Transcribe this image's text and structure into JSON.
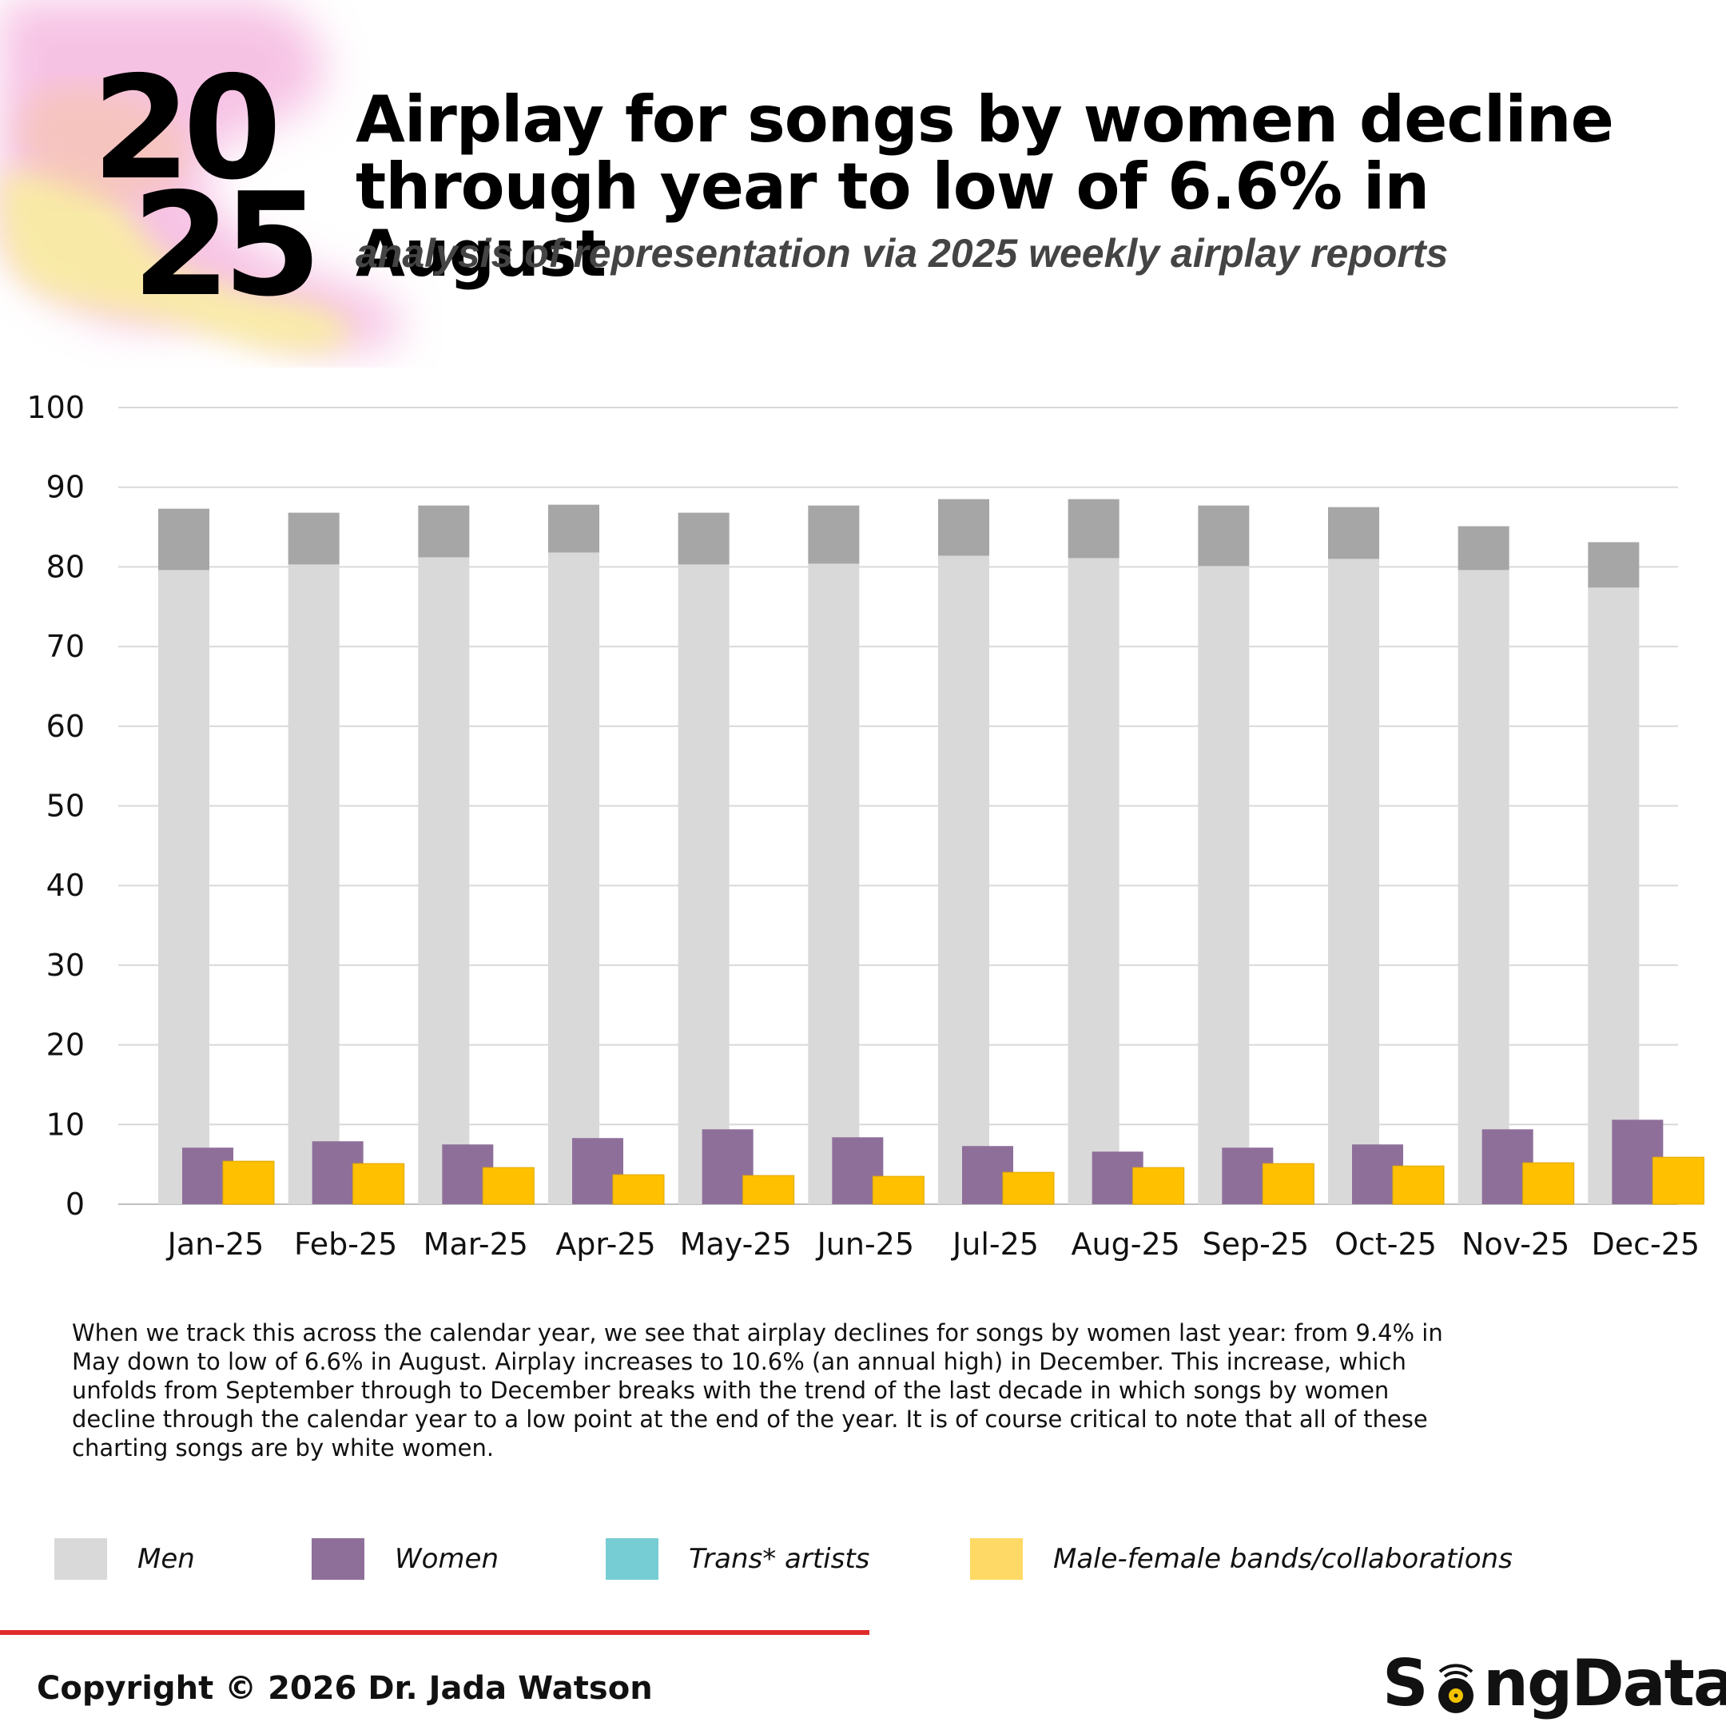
{
  "header": {
    "year_top": "20",
    "year_bottom": "25",
    "title_line1": "Airplay for songs by women decline",
    "title_line2": "through year to low of 6.6% in August",
    "subtitle": "analysis of representation via 2025 weekly airplay reports"
  },
  "chart_data": {
    "type": "bar",
    "categories": [
      "Jan-25",
      "Feb-25",
      "Mar-25",
      "Apr-25",
      "May-25",
      "Jun-25",
      "Jul-25",
      "Aug-25",
      "Sep-25",
      "Oct-25",
      "Nov-25",
      "Dec-25"
    ],
    "series": [
      {
        "name": "Men",
        "color": "#d9d9d9",
        "values": [
          79.6,
          80.3,
          81.2,
          81.8,
          80.3,
          80.4,
          81.4,
          81.1,
          80.1,
          81.0,
          79.6,
          77.4
        ],
        "upper_band": {
          "color": "#a6a6a6",
          "values": [
            87.3,
            86.8,
            87.7,
            87.8,
            86.8,
            87.7,
            88.5,
            88.5,
            87.7,
            87.5,
            85.1,
            83.1
          ]
        }
      },
      {
        "name": "Women",
        "color": "#8e6f9a",
        "values": [
          7.1,
          7.9,
          7.5,
          8.3,
          9.4,
          8.4,
          7.3,
          6.6,
          7.1,
          7.5,
          9.4,
          10.6
        ]
      },
      {
        "name": "Trans* artists",
        "color": "#76cdd3",
        "values": [
          0,
          0,
          0,
          0,
          0,
          0,
          0,
          0,
          0,
          0,
          0,
          0
        ]
      },
      {
        "name": "Male-female bands/collaborations",
        "color": "#ffc000",
        "values": [
          5.4,
          5.1,
          4.6,
          3.7,
          3.6,
          3.5,
          4.0,
          4.6,
          5.1,
          4.8,
          5.2,
          5.9
        ]
      }
    ],
    "y_ticks": [
      "0",
      "10",
      "20",
      "30",
      "40",
      "50",
      "60",
      "70",
      "80",
      "90",
      "100"
    ],
    "ylim": [
      0,
      100
    ],
    "grid": true,
    "legend_placement": "bottom"
  },
  "caption": "When we track this across the calendar year, we see that airplay declines for songs by women last year: from 9.4% in May down to low of 6.6% in August. Airplay increases to 10.6% (an annual high) in December. This increase, which unfolds from September through to December breaks with the trend of the last decade in which songs by women decline through the calendar year to a low point at the end of the year. It is of course critical to note that all of these charting songs are by white women.",
  "legend": {
    "men": "Men",
    "women": "Women",
    "trans": "Trans* artists",
    "collab": "Male-female bands/collaborations",
    "men_color": "#d9d9d9",
    "women_color": "#8e6f9a",
    "trans_color": "#76cdd3",
    "collab_color": "#ffd966"
  },
  "footer": {
    "copyright": "Copyright © 2026 Dr. Jada Watson",
    "logo_s": "S",
    "logo_rest": "ngData",
    "logo_text": "SongData"
  }
}
